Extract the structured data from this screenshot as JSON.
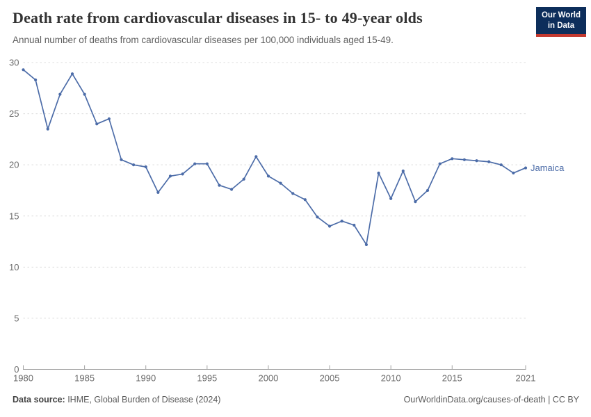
{
  "header": {
    "title": "Death rate from cardiovascular diseases in 15- to 49-year olds",
    "subtitle": "Annual number of deaths from cardiovascular diseases per 100,000 individuals aged 15-49.",
    "logo": {
      "line1": "Our World",
      "line2": "in Data"
    }
  },
  "chart_data": {
    "type": "line",
    "title": "Death rate from cardiovascular diseases in 15- to 49-year olds",
    "xlabel": "",
    "ylabel": "",
    "ylim": [
      0,
      30
    ],
    "yticks": [
      0,
      5,
      10,
      15,
      20,
      25,
      30
    ],
    "xticks": [
      1980,
      1985,
      1990,
      1995,
      2000,
      2005,
      2010,
      2015,
      2021
    ],
    "grid": "horizontal-dashed",
    "legend_position": "end-of-line-label",
    "x": [
      1980,
      1981,
      1982,
      1983,
      1984,
      1985,
      1986,
      1987,
      1988,
      1989,
      1990,
      1991,
      1992,
      1993,
      1994,
      1995,
      1996,
      1997,
      1998,
      1999,
      2000,
      2001,
      2002,
      2003,
      2004,
      2005,
      2006,
      2007,
      2008,
      2009,
      2010,
      2011,
      2012,
      2013,
      2014,
      2015,
      2016,
      2017,
      2018,
      2019,
      2020,
      2021
    ],
    "series": [
      {
        "name": "Jamaica",
        "color": "#4C6CA8",
        "values": [
          29.3,
          28.3,
          23.5,
          26.9,
          28.9,
          26.9,
          24.0,
          24.5,
          20.5,
          20.0,
          19.8,
          17.3,
          18.9,
          19.1,
          20.1,
          20.1,
          18.0,
          17.6,
          18.6,
          20.8,
          18.9,
          18.2,
          17.2,
          16.6,
          14.9,
          14.0,
          14.5,
          14.1,
          12.2,
          19.2,
          16.7,
          19.4,
          16.4,
          17.5,
          20.1,
          20.6,
          20.5,
          20.4,
          20.3,
          20.0,
          19.2,
          19.7
        ]
      }
    ]
  },
  "footer": {
    "datasource_label": "Data source:",
    "datasource_text": " IHME, Global Burden of Disease (2024)",
    "rights": "OurWorldinData.org/causes-of-death | CC BY"
  },
  "colors": {
    "line": "#4C6CA8",
    "grid": "#dcdcdc",
    "axis": "#a3a3a3",
    "tick_label": "#6b6b6b",
    "logo_navy": "#0D2E5B",
    "logo_red": "#C4392F"
  }
}
